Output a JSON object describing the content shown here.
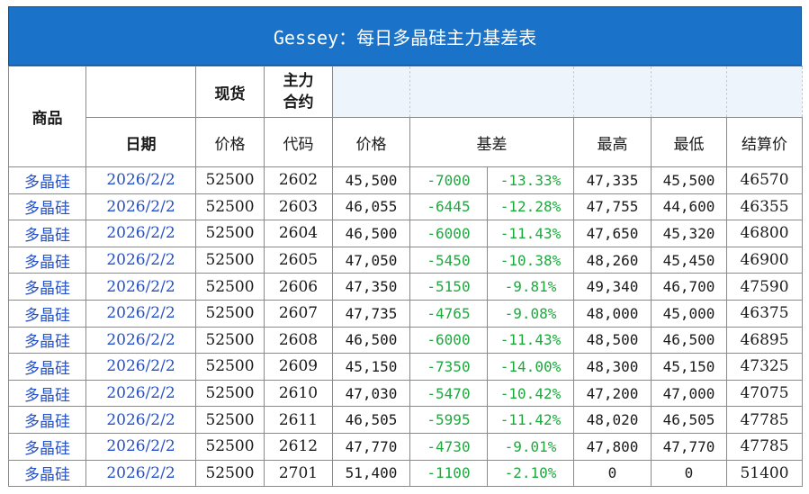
{
  "title": "Gessey：每日多晶硅主力基差表",
  "headers": {
    "product": "商品",
    "spot": "现货",
    "main_contract": "主力\n合约",
    "date": "日期",
    "spot_price": "价格",
    "code": "代码",
    "price": "价格",
    "basis": "基差",
    "high": "最高",
    "low": "最低",
    "settle": "结算价"
  },
  "rows": [
    {
      "product": "多晶硅",
      "date": "2026/2/2",
      "spot": "52500",
      "code": "2602",
      "price": "45,500",
      "basis": "-7000",
      "basis_pct": "-13.33%",
      "high": "47,335",
      "low": "45,500",
      "settle": "46570"
    },
    {
      "product": "多晶硅",
      "date": "2026/2/2",
      "spot": "52500",
      "code": "2603",
      "price": "46,055",
      "basis": "-6445",
      "basis_pct": "-12.28%",
      "high": "47,755",
      "low": "44,600",
      "settle": "46355"
    },
    {
      "product": "多晶硅",
      "date": "2026/2/2",
      "spot": "52500",
      "code": "2604",
      "price": "46,500",
      "basis": "-6000",
      "basis_pct": "-11.43%",
      "high": "47,650",
      "low": "45,320",
      "settle": "46800"
    },
    {
      "product": "多晶硅",
      "date": "2026/2/2",
      "spot": "52500",
      "code": "2605",
      "price": "47,050",
      "basis": "-5450",
      "basis_pct": "-10.38%",
      "high": "48,260",
      "low": "45,450",
      "settle": "46900"
    },
    {
      "product": "多晶硅",
      "date": "2026/2/2",
      "spot": "52500",
      "code": "2606",
      "price": "47,350",
      "basis": "-5150",
      "basis_pct": "-9.81%",
      "high": "49,340",
      "low": "46,700",
      "settle": "47590"
    },
    {
      "product": "多晶硅",
      "date": "2026/2/2",
      "spot": "52500",
      "code": "2607",
      "price": "47,735",
      "basis": "-4765",
      "basis_pct": "-9.08%",
      "high": "48,000",
      "low": "45,000",
      "settle": "46375"
    },
    {
      "product": "多晶硅",
      "date": "2026/2/2",
      "spot": "52500",
      "code": "2608",
      "price": "46,500",
      "basis": "-6000",
      "basis_pct": "-11.43%",
      "high": "48,500",
      "low": "46,500",
      "settle": "46895"
    },
    {
      "product": "多晶硅",
      "date": "2026/2/2",
      "spot": "52500",
      "code": "2609",
      "price": "45,150",
      "basis": "-7350",
      "basis_pct": "-14.00%",
      "high": "48,300",
      "low": "45,150",
      "settle": "47325"
    },
    {
      "product": "多晶硅",
      "date": "2026/2/2",
      "spot": "52500",
      "code": "2610",
      "price": "47,030",
      "basis": "-5470",
      "basis_pct": "-10.42%",
      "high": "47,200",
      "low": "47,000",
      "settle": "47075"
    },
    {
      "product": "多晶硅",
      "date": "2026/2/2",
      "spot": "52500",
      "code": "2611",
      "price": "46,505",
      "basis": "-5995",
      "basis_pct": "-11.42%",
      "high": "48,020",
      "low": "46,505",
      "settle": "47785"
    },
    {
      "product": "多晶硅",
      "date": "2026/2/2",
      "spot": "52500",
      "code": "2612",
      "price": "47,770",
      "basis": "-4730",
      "basis_pct": "-9.01%",
      "high": "47,800",
      "low": "47,770",
      "settle": "47785"
    },
    {
      "product": "多晶硅",
      "date": "2026/2/2",
      "spot": "52500",
      "code": "2701",
      "price": "51,400",
      "basis": "-1100",
      "basis_pct": "-2.10%",
      "high": "0",
      "low": "0",
      "settle": "51400"
    }
  ],
  "colors": {
    "title_bg": "#1a73c8",
    "link_blue": "#2450c8",
    "basis_green": "#1daa3d"
  }
}
